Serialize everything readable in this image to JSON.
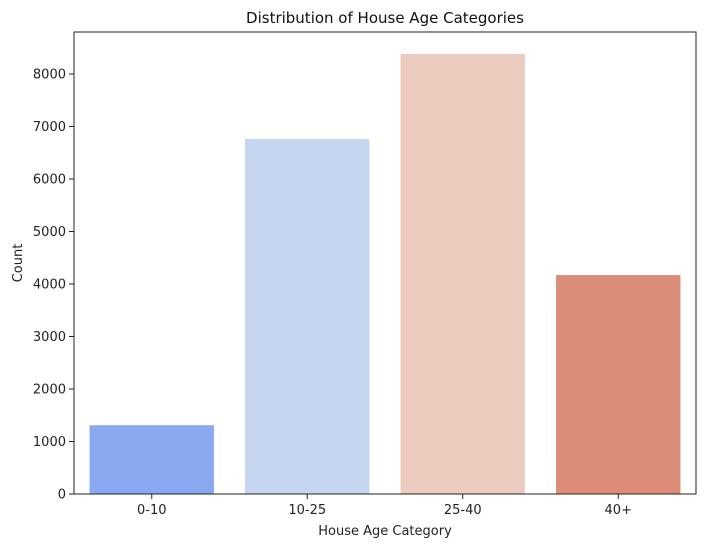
{
  "chart_data": {
    "type": "bar",
    "title": "Distribution of House Age Categories",
    "xlabel": "House Age Category",
    "ylabel": "Count",
    "categories": [
      "0-10",
      "10-25",
      "25-40",
      "40+"
    ],
    "values": [
      1310,
      6760,
      8380,
      4170
    ],
    "colors": [
      "#8aa8f0",
      "#c6d6f0",
      "#ebccbf",
      "#dc8d77"
    ],
    "ylim": [
      0,
      8800
    ],
    "yticks": [
      0,
      1000,
      2000,
      3000,
      4000,
      5000,
      6000,
      7000,
      8000
    ],
    "grid": false,
    "legend": "none"
  }
}
